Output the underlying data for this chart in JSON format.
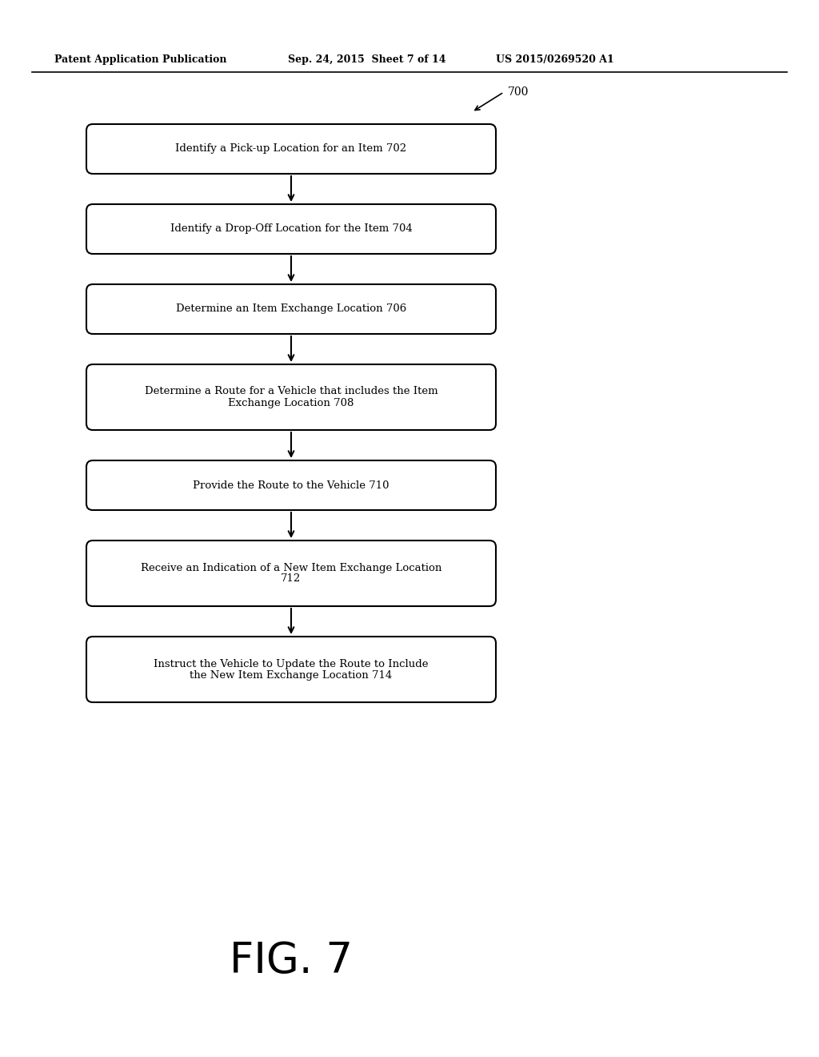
{
  "header_left": "Patent Application Publication",
  "header_mid": "Sep. 24, 2015  Sheet 7 of 14",
  "header_right": "US 2015/0269520 A1",
  "fig_label": "FIG. 7",
  "ref_number": "700",
  "background_color": "#ffffff",
  "box_edge_color": "#000000",
  "box_fill_color": "#ffffff",
  "text_color": "#000000",
  "boxes": [
    {
      "id": "702",
      "lines": [
        "Identify a Pick-up Location for an Item 702"
      ],
      "num_text_lines": 1
    },
    {
      "id": "704",
      "lines": [
        "Identify a Drop-Off Location for the Item 704"
      ],
      "num_text_lines": 1
    },
    {
      "id": "706",
      "lines": [
        "Determine an Item Exchange Location 706"
      ],
      "num_text_lines": 1
    },
    {
      "id": "708",
      "lines": [
        "Determine a Route for a Vehicle that includes the Item",
        "Exchange Location 708"
      ],
      "num_text_lines": 2
    },
    {
      "id": "710",
      "lines": [
        "Provide the Route to the Vehicle 710"
      ],
      "num_text_lines": 1
    },
    {
      "id": "712",
      "lines": [
        "Receive an Indication of a New Item Exchange Location",
        "712"
      ],
      "num_text_lines": 2
    },
    {
      "id": "714",
      "lines": [
        "Instruct the Vehicle to Update the Route to Include",
        "the New Item Exchange Location 714"
      ],
      "num_text_lines": 2
    }
  ]
}
